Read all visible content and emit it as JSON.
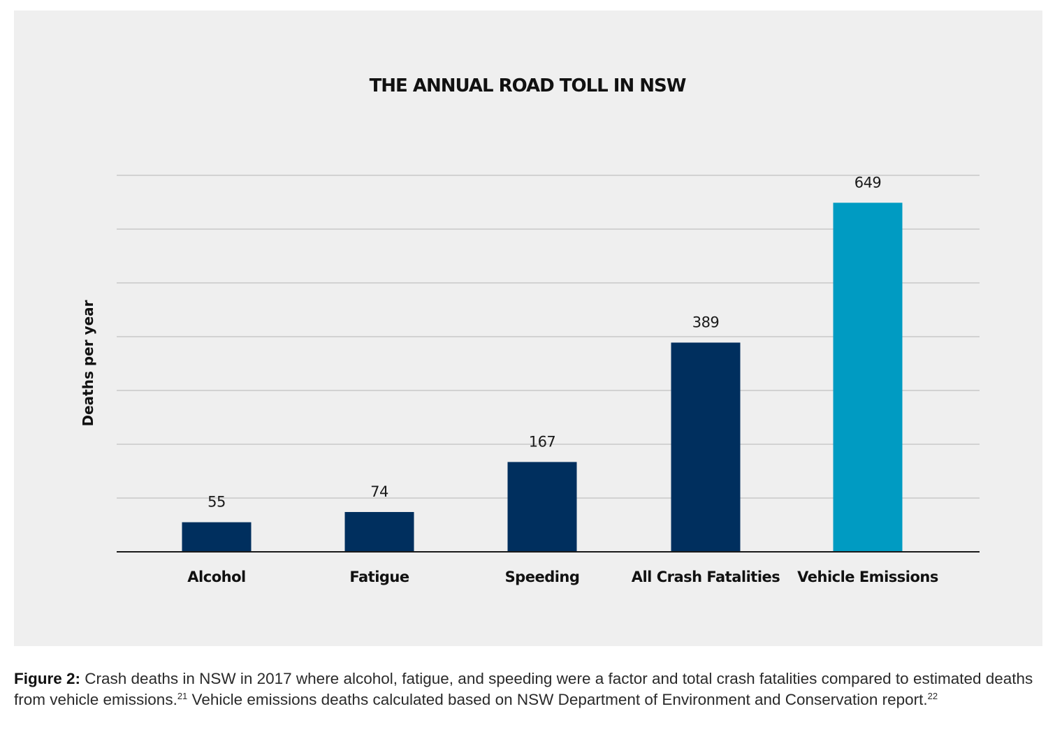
{
  "chart_data": {
    "type": "bar",
    "title": "THE ANNUAL ROAD TOLL IN NSW",
    "ylabel": "Deaths per year",
    "xlabel": "",
    "categories": [
      "Alcohol",
      "Fatigue",
      "Speeding",
      "All Crash Fatalities",
      "Vehicle Emissions"
    ],
    "values": [
      55,
      74,
      167,
      389,
      649
    ],
    "ylim": [
      0,
      700
    ],
    "grid": true,
    "colors": [
      "#002f5e",
      "#002f5e",
      "#002f5e",
      "#002f5e",
      "#009bc2"
    ]
  },
  "caption": {
    "label": "Figure 2:",
    "part1": " Crash deaths in NSW in 2017 where alcohol, fatigue, and speeding were a factor and total crash fatalities compared to estimated deaths from vehicle emissions.",
    "ref1": "21",
    "part2": " Vehicle emissions deaths calculated based on NSW Department of Environment and Conservation report.",
    "ref2": "22"
  }
}
